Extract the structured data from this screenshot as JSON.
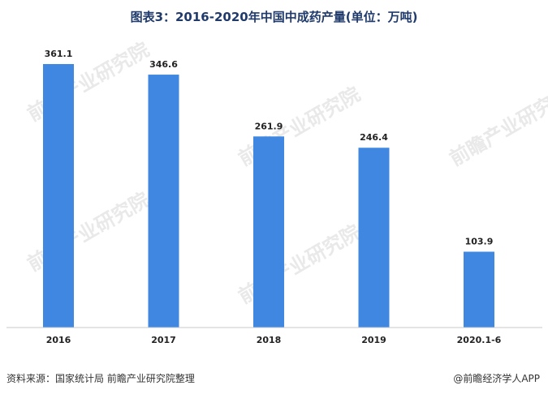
{
  "chart_data": {
    "type": "bar",
    "title": "图表3：2016-2020年中国中成药产量(单位：万吨)",
    "categories": [
      "2016",
      "2017",
      "2018",
      "2019",
      "2020.1-6"
    ],
    "values": [
      361.1,
      346.6,
      261.9,
      246.4,
      103.9
    ],
    "value_labels": [
      "361.1",
      "346.6",
      "261.9",
      "246.4",
      "103.9"
    ],
    "ylim": [
      0,
      400
    ],
    "grid": false,
    "legend": "none",
    "bar_color": "#3f87e0",
    "xlabel": "",
    "ylabel": ""
  },
  "footer": {
    "source": "资料来源：国家统计局 前瞻产业研究院整理",
    "credit": "@前瞻经济学人APP"
  },
  "watermark": {
    "text": "前瞻产业研究院"
  }
}
